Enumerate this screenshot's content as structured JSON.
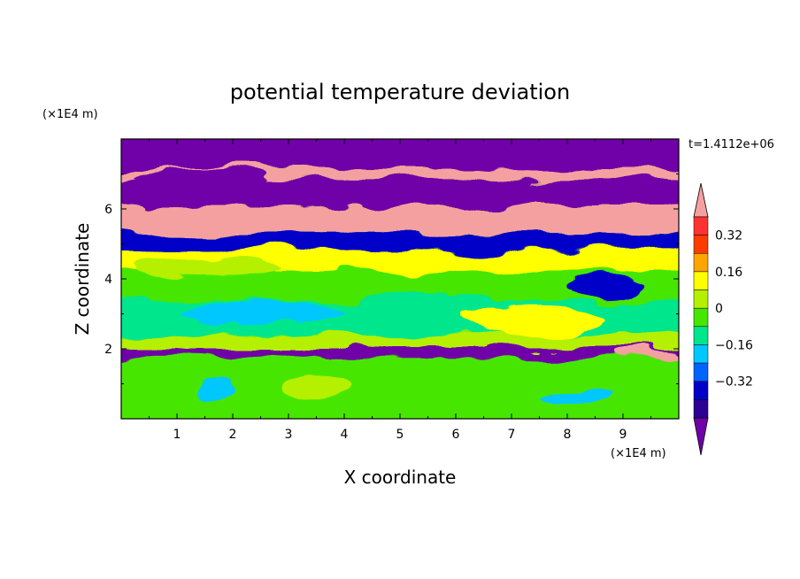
{
  "chart_data": {
    "type": "heatmap",
    "title": "potential temperature deviation",
    "time_label": "t=1.4112e+06",
    "xlabel": "X coordinate",
    "ylabel": "Z coordinate",
    "x_unit": "(×1E4 m)",
    "y_unit": "(×1E4 m)",
    "xlim": [
      0,
      10
    ],
    "ylim": [
      0,
      8
    ],
    "x_ticks": [
      "1",
      "2",
      "3",
      "4",
      "5",
      "6",
      "7",
      "8",
      "9"
    ],
    "y_ticks": [
      "2",
      "4",
      "6"
    ],
    "colorbar": {
      "labels": [
        "0.32",
        "0.16",
        "0",
        "−0.16",
        "−0.32"
      ],
      "label_values": [
        0.32,
        0.16,
        0,
        -0.16,
        -0.32
      ],
      "levels": [
        -0.4,
        -0.32,
        -0.24,
        -0.16,
        -0.08,
        0,
        0.08,
        0.16,
        0.24,
        0.32,
        0.4
      ],
      "colors": [
        "#7000a8",
        "#2d0096",
        "#0000c8",
        "#0064ff",
        "#00c8ff",
        "#00e68c",
        "#46e600",
        "#b4f000",
        "#ffff00",
        "#ffa500",
        "#ff3c00",
        "#ff3232",
        "#f5a0a0"
      ],
      "under_color": "#7000a8",
      "over_color": "#f5a0a0"
    },
    "bands": [
      {
        "z": [
          7.15,
          7.9
        ],
        "value": -0.5
      },
      {
        "z": [
          6.85,
          7.15
        ],
        "value": 0.5
      },
      {
        "z": [
          6.1,
          6.85
        ],
        "value": -0.5
      },
      {
        "z": [
          5.3,
          6.1
        ],
        "value": 0.5
      },
      {
        "z": [
          4.8,
          5.3
        ],
        "value": -0.3
      },
      {
        "z": [
          4.2,
          4.8
        ],
        "value": 0.2
      },
      {
        "z": [
          3.4,
          4.2
        ],
        "value": 0.04
      },
      {
        "z": [
          2.4,
          3.4
        ],
        "value": -0.06
      },
      {
        "z": [
          2.0,
          2.4
        ],
        "value": 0.12
      },
      {
        "z": [
          1.75,
          2.0
        ],
        "value": -0.45
      },
      {
        "z": [
          0.0,
          1.75
        ],
        "value": 0.05
      }
    ],
    "features": [
      {
        "x": 1.7,
        "z": 0.85,
        "rx": 0.35,
        "rz": 0.35,
        "value": -0.16
      },
      {
        "x": 8.1,
        "z": 0.75,
        "rx": 0.7,
        "rz": 0.25,
        "value": -0.16
      },
      {
        "x": 3.5,
        "z": 0.9,
        "rx": 0.6,
        "rz": 0.35,
        "value": 0.08
      },
      {
        "x": 8.7,
        "z": 3.8,
        "rx": 0.7,
        "rz": 0.3,
        "value": -0.3
      },
      {
        "x": 7.4,
        "z": 2.8,
        "rx": 1.3,
        "rz": 0.45,
        "value": 0.2
      },
      {
        "x": 5.5,
        "z": 3.3,
        "rx": 1.2,
        "rz": 0.4,
        "value": -0.08
      },
      {
        "x": 2.5,
        "z": 3.0,
        "rx": 1.5,
        "rz": 0.35,
        "value": -0.1
      },
      {
        "x": 1.5,
        "z": 4.3,
        "rx": 1.4,
        "rz": 0.25,
        "value": 0.15
      },
      {
        "x": 9.4,
        "z": 1.8,
        "rx": 0.6,
        "rz": 0.15,
        "value": 0.45
      },
      {
        "x": 7.5,
        "z": 7.3,
        "rx": 1.6,
        "rz": 0.2,
        "value": -0.5
      },
      {
        "x": 1.4,
        "z": 6.9,
        "rx": 1.2,
        "rz": 0.2,
        "value": -0.5
      }
    ]
  }
}
